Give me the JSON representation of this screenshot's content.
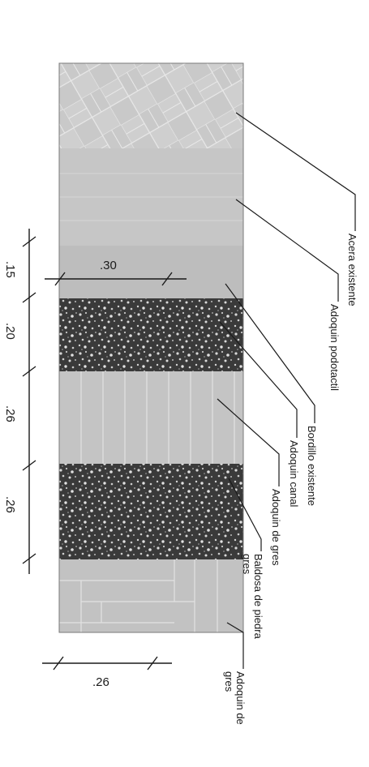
{
  "labels": {
    "acera_existente": "Acera existente",
    "adoquin_podotactil": "Adoquin podotactil",
    "bordillo_existente": "Bordillo existente",
    "adoquin_canal": "Adoquin canal",
    "adoquin_gres": "Adoquin de gres",
    "baldosa_piedra_line1": "Baldosa de piedra",
    "baldosa_piedra_line2": "gres",
    "adoquin_de_gres_line1": "Adoquin de",
    "adoquin_de_gres_line2": "gres"
  },
  "dimensions": {
    "width_top": ".30",
    "width_bottom": ".26",
    "d1": ".15",
    "d2": ".20",
    "d3": ".26",
    "d4": ".26"
  },
  "colors": {
    "stroke": "#1a1a1a",
    "gray_light": "#c4c4c4",
    "gray_mid": "#bcbcbc",
    "gravel_dark": "#2b2b2b",
    "gravel_light": "#d6d6d6"
  }
}
